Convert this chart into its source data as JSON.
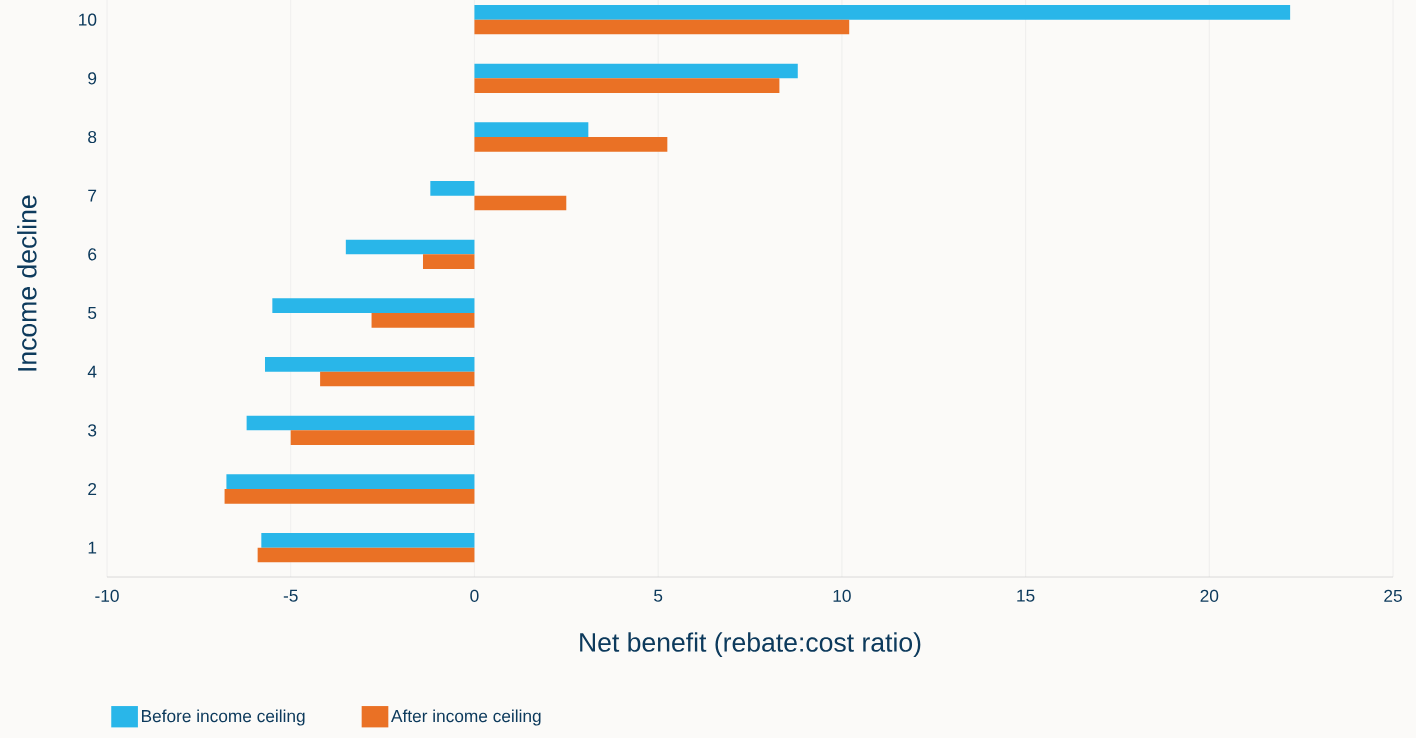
{
  "chart_data": {
    "type": "bar",
    "orientation": "horizontal",
    "xlabel": "Net benefit (rebate:cost ratio)",
    "ylabel": "Income decline",
    "categories": [
      "10",
      "9",
      "8",
      "7",
      "6",
      "5",
      "4",
      "3",
      "2",
      "1"
    ],
    "series": [
      {
        "name": "Before income ceiling",
        "color": "#29b6e9",
        "values": [
          22.2,
          8.8,
          3.1,
          -1.2,
          -3.5,
          -5.5,
          -5.7,
          -6.2,
          -6.75,
          -5.8
        ]
      },
      {
        "name": "After income ceiling",
        "color": "#ea7125",
        "values": [
          10.2,
          8.3,
          5.25,
          2.5,
          -1.4,
          -2.8,
          -4.2,
          -5.0,
          -6.8,
          -5.9
        ]
      }
    ],
    "xlim": [
      -10,
      25
    ],
    "xticks": [
      -10,
      -5,
      0,
      5,
      10,
      15,
      20,
      25
    ],
    "grid": "x",
    "legend": "bottom left"
  }
}
